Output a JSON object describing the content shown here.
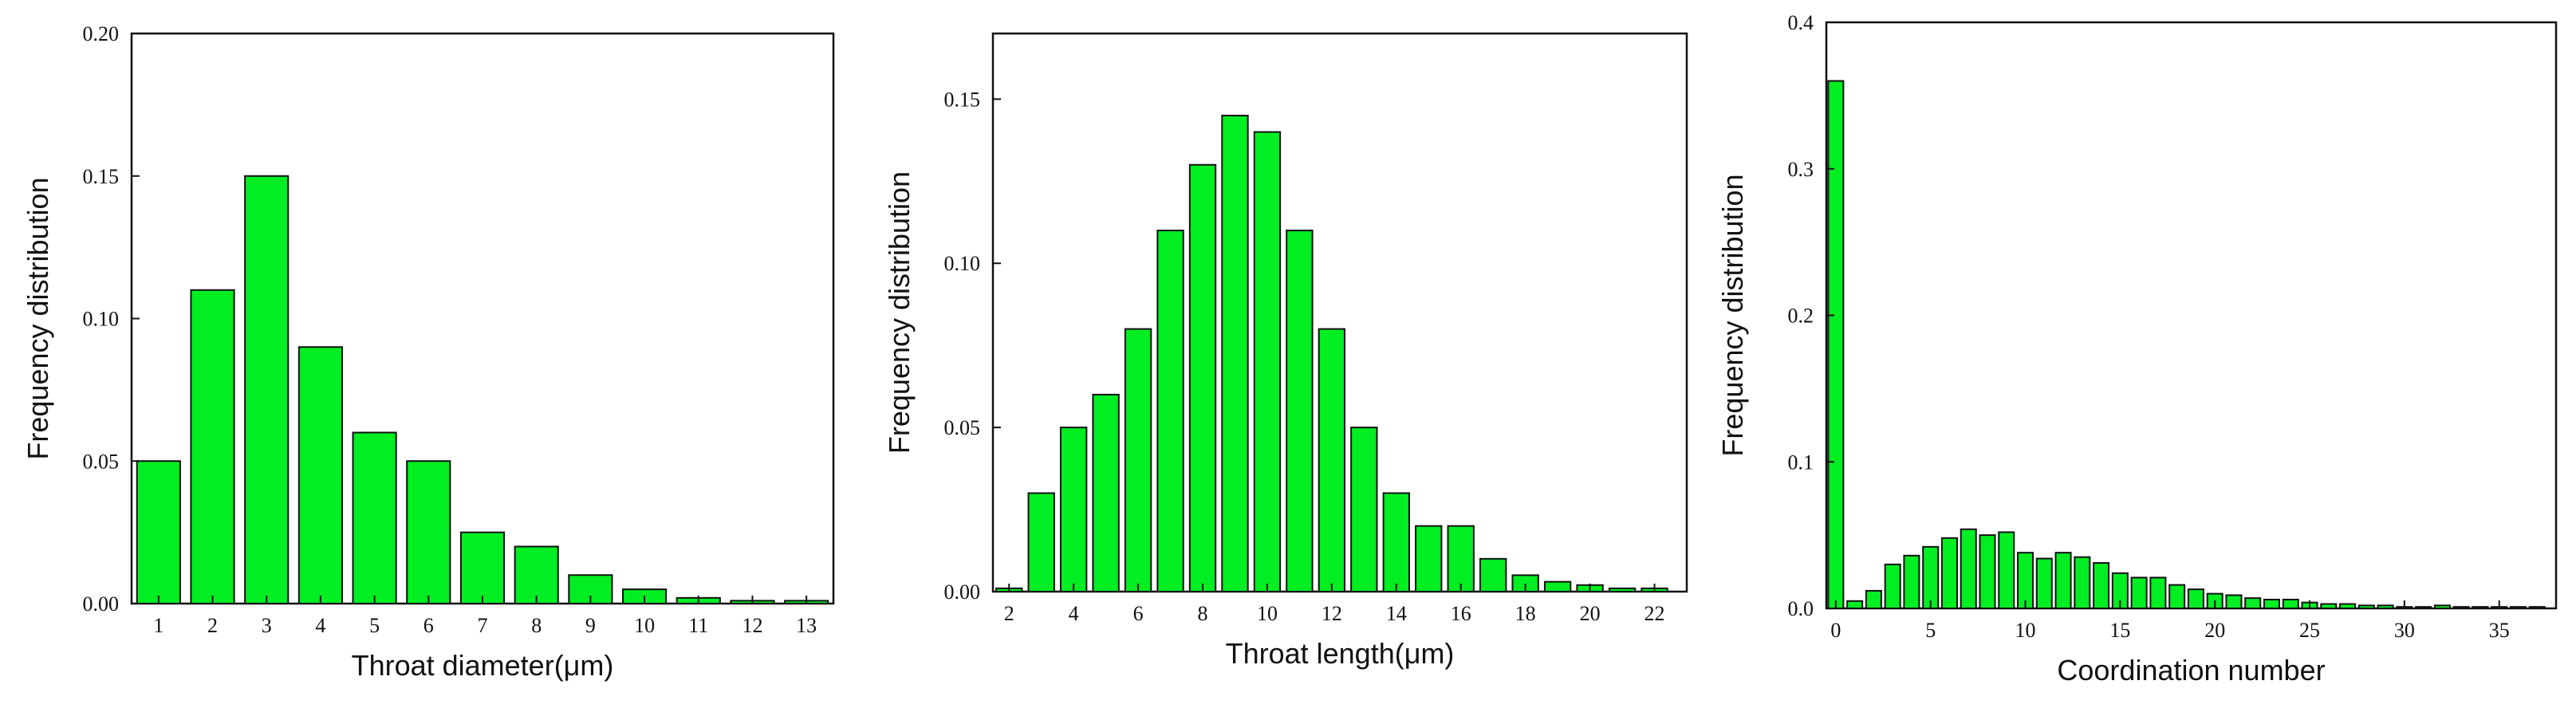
{
  "chart_data": [
    {
      "type": "bar",
      "xlabel": "Throat diameter(μm)",
      "ylabel": "Frequency distribution",
      "categories": [
        "1",
        "2",
        "3",
        "4",
        "5",
        "6",
        "7",
        "8",
        "9",
        "10",
        "11",
        "12",
        "13"
      ],
      "values": [
        0.05,
        0.11,
        0.15,
        0.09,
        0.06,
        0.05,
        0.025,
        0.02,
        0.01,
        0.005,
        0.002,
        0.001,
        0.001
      ],
      "xlim": [
        0.5,
        13.5
      ],
      "xticks": [
        1,
        2,
        3,
        4,
        5,
        6,
        7,
        8,
        9,
        10,
        11,
        12,
        13
      ],
      "ylim": [
        0,
        0.2
      ],
      "yticks": [
        0.0,
        0.05,
        0.1,
        0.15,
        0.2
      ],
      "ytick_labels": [
        "0.00",
        "0.05",
        "0.10",
        "0.15",
        "0.20"
      ],
      "bar_width": 0.8,
      "bar_color": "#00ee22"
    },
    {
      "type": "bar",
      "xlabel": "Throat length(μm)",
      "ylabel": "Frequency distribution",
      "categories": [
        "2",
        "3",
        "4",
        "5",
        "6",
        "7",
        "8",
        "9",
        "10",
        "11",
        "12",
        "13",
        "14",
        "15",
        "16",
        "17",
        "18",
        "19",
        "20",
        "21",
        "22"
      ],
      "values": [
        0.001,
        0.03,
        0.05,
        0.06,
        0.08,
        0.11,
        0.13,
        0.145,
        0.14,
        0.11,
        0.08,
        0.05,
        0.03,
        0.02,
        0.02,
        0.01,
        0.005,
        0.003,
        0.002,
        0.001,
        0.001
      ],
      "xlim": [
        1.5,
        23
      ],
      "xticks": [
        2,
        4,
        6,
        8,
        10,
        12,
        14,
        16,
        18,
        20,
        22
      ],
      "ylim": [
        0,
        0.17
      ],
      "yticks": [
        0.0,
        0.05,
        0.1,
        0.15
      ],
      "ytick_labels": [
        "0.00",
        "0.05",
        "0.10",
        "0.15"
      ],
      "bar_width": 0.8,
      "bar_color": "#00ee22"
    },
    {
      "type": "bar",
      "xlabel": "Coordination number",
      "ylabel": "Frequency distribution",
      "categories": [
        "0",
        "1",
        "2",
        "3",
        "4",
        "5",
        "6",
        "7",
        "8",
        "9",
        "10",
        "11",
        "12",
        "13",
        "14",
        "15",
        "16",
        "17",
        "18",
        "19",
        "20",
        "21",
        "22",
        "23",
        "24",
        "25",
        "26",
        "27",
        "28",
        "29",
        "30",
        "31",
        "32",
        "33",
        "34",
        "35",
        "36",
        "37"
      ],
      "values": [
        0.36,
        0.005,
        0.012,
        0.03,
        0.036,
        0.042,
        0.048,
        0.054,
        0.05,
        0.052,
        0.038,
        0.034,
        0.038,
        0.035,
        0.031,
        0.024,
        0.021,
        0.021,
        0.016,
        0.013,
        0.01,
        0.009,
        0.007,
        0.006,
        0.006,
        0.004,
        0.003,
        0.003,
        0.002,
        0.002,
        0.001,
        0.001,
        0.002,
        0.001,
        0.001,
        0.001,
        0.001,
        0.001
      ],
      "xlim": [
        -0.5,
        38
      ],
      "xticks": [
        0,
        5,
        10,
        15,
        20,
        25,
        30,
        35
      ],
      "ylim": [
        0,
        0.4
      ],
      "yticks": [
        0.0,
        0.1,
        0.2,
        0.3,
        0.4
      ],
      "ytick_labels": [
        "0.0",
        "0.1",
        "0.2",
        "0.3",
        "0.4"
      ],
      "bar_width": 0.8,
      "bar_color": "#00ee22"
    }
  ]
}
